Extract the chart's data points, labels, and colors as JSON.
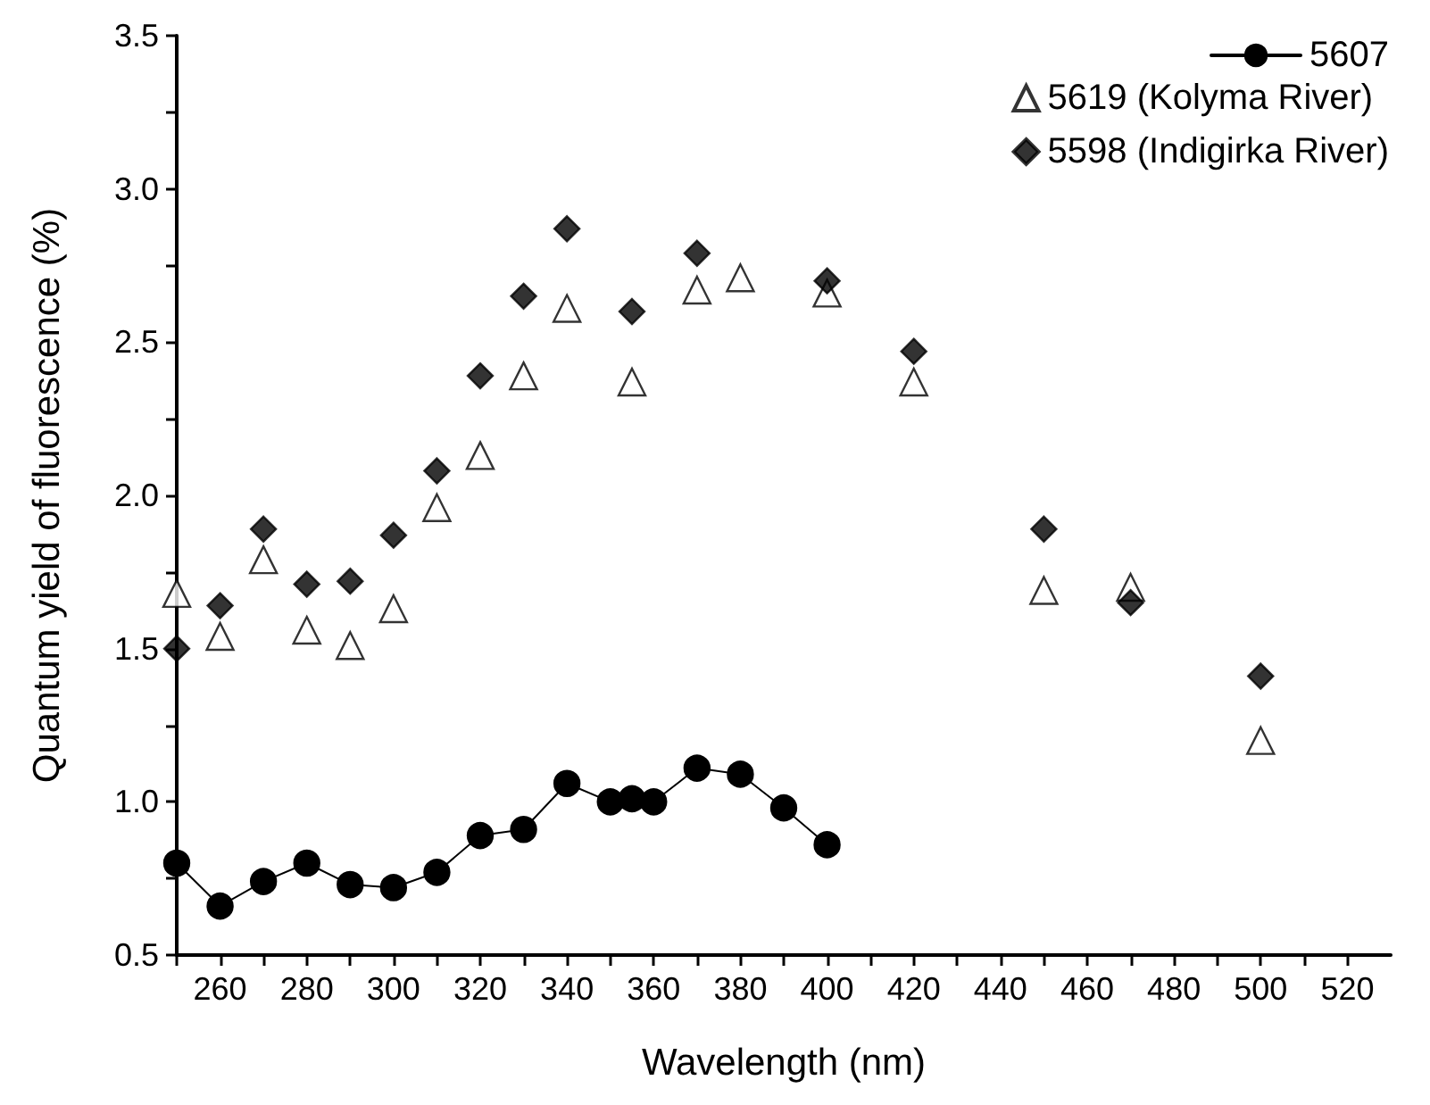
{
  "chart_data": {
    "type": "scatter",
    "xlabel": "Wavelength (nm)",
    "ylabel": "Quantum yield of fluorescence (%)",
    "xlim": [
      250,
      530
    ],
    "ylim": [
      0.5,
      3.5
    ],
    "xticks": [
      {
        "value": 250,
        "label": null
      },
      260,
      {
        "value": 270,
        "label": null
      },
      280,
      {
        "value": 290,
        "label": null
      },
      300,
      {
        "value": 310,
        "label": null
      },
      320,
      {
        "value": 330,
        "label": null
      },
      340,
      {
        "value": 350,
        "label": null
      },
      360,
      {
        "value": 370,
        "label": null
      },
      380,
      {
        "value": 390,
        "label": null
      },
      400,
      {
        "value": 410,
        "label": null
      },
      420,
      {
        "value": 430,
        "label": null
      },
      440,
      {
        "value": 450,
        "label": null
      },
      460,
      {
        "value": 470,
        "label": null
      },
      480,
      {
        "value": 490,
        "label": null
      },
      500,
      {
        "value": 510,
        "label": null
      },
      520
    ],
    "yticks": [
      {
        "value": 0.5,
        "label": "0.5"
      },
      {
        "value": 0.75,
        "label": null
      },
      {
        "value": 1,
        "label": "1.0"
      },
      {
        "value": 1.25,
        "label": null
      },
      {
        "value": 1.5,
        "label": "1.5"
      },
      {
        "value": 1.75,
        "label": null
      },
      {
        "value": 2,
        "label": "2.0"
      },
      {
        "value": 2.25,
        "label": null
      },
      {
        "value": 2.5,
        "label": "2.5"
      },
      {
        "value": 2.75,
        "label": null
      },
      {
        "value": 3,
        "label": "3.0"
      },
      {
        "value": 3.25,
        "label": null
      },
      {
        "value": 3.5,
        "label": "3.5"
      }
    ],
    "grid": false,
    "legend": "top right",
    "series": [
      {
        "name": "5607",
        "type": "line",
        "marker": "circle",
        "line_style": "solid",
        "color": "#000000",
        "x": [
          250,
          260,
          270,
          280,
          290,
          300,
          310,
          320,
          330,
          340,
          350,
          355,
          360,
          370,
          380,
          390,
          400
        ],
        "values": [
          0.8,
          0.66,
          0.74,
          0.8,
          0.73,
          0.72,
          0.77,
          0.89,
          0.91,
          1.06,
          1.0,
          1.01,
          1.0,
          1.11,
          1.09,
          0.98,
          0.86
        ]
      },
      {
        "name": "5619 (Kolyma River)",
        "marker": "triangle",
        "color": "#ffffff",
        "x": [
          250,
          260,
          270,
          280,
          290,
          300,
          310,
          320,
          330,
          340,
          355,
          370,
          380,
          400,
          420,
          450,
          470,
          500
        ],
        "values": [
          1.68,
          1.54,
          1.79,
          1.56,
          1.51,
          1.63,
          1.96,
          2.13,
          2.39,
          2.61,
          2.37,
          2.67,
          2.71,
          2.66,
          2.37,
          1.69,
          1.7,
          1.2
        ]
      },
      {
        "name": "5598 (Indigirka River)",
        "marker": "diamond",
        "color": "#000000",
        "x": [
          250,
          260,
          270,
          280,
          290,
          300,
          310,
          320,
          330,
          340,
          355,
          370,
          400,
          420,
          450,
          470,
          500
        ],
        "values": [
          1.5,
          1.64,
          1.89,
          1.71,
          1.72,
          1.87,
          2.08,
          2.39,
          2.65,
          2.87,
          2.6,
          2.79,
          2.7,
          2.47,
          1.89,
          1.65,
          1.41
        ]
      }
    ]
  }
}
